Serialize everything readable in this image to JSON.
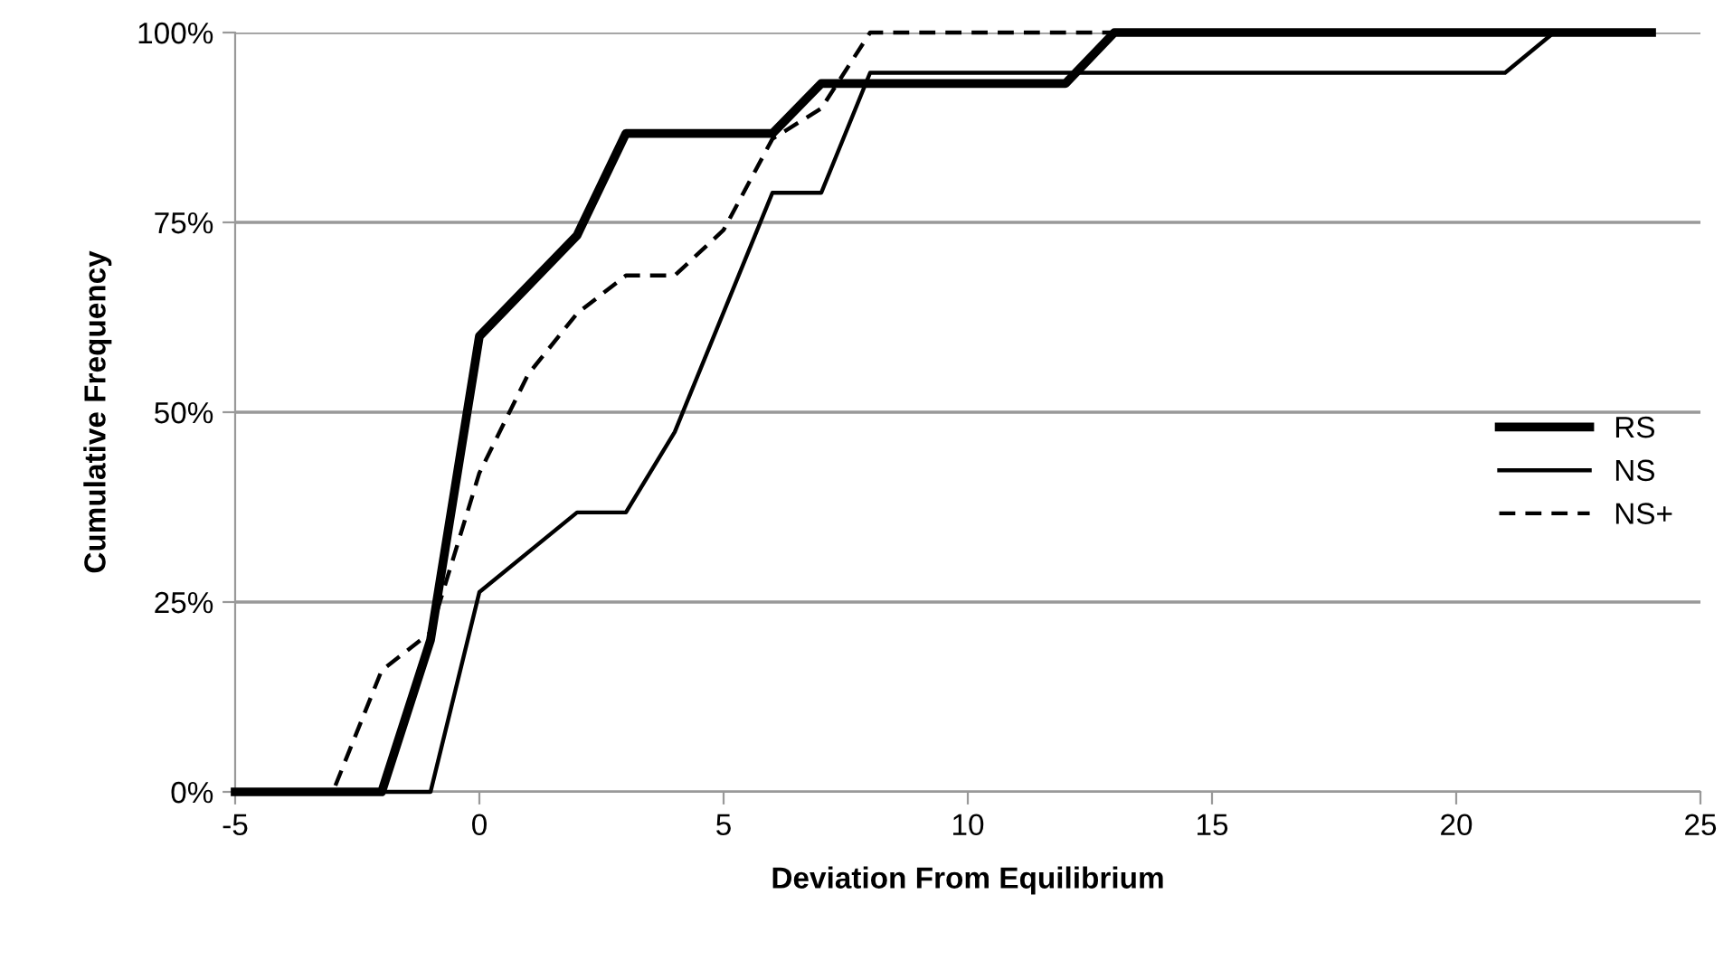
{
  "chart_data": {
    "type": "line",
    "xlabel": "Deviation From Equilibrium",
    "ylabel": "Cumulative Frequency",
    "xlim": [
      -5,
      25
    ],
    "xticks": [
      -5,
      0,
      5,
      10,
      15,
      20,
      25
    ],
    "ylim": [
      0,
      100
    ],
    "yticks": [
      {
        "value": 0,
        "label": "0%"
      },
      {
        "value": 25,
        "label": "25%"
      },
      {
        "value": 50,
        "label": "50%"
      },
      {
        "value": 75,
        "label": "75%"
      },
      {
        "value": 100,
        "label": "100%"
      }
    ],
    "grid": "y",
    "legend": "right",
    "marker": "none",
    "series": [
      {
        "name": "RS",
        "color": "#000000",
        "line_style": "solid",
        "x": [
          -5,
          -2,
          -1,
          0,
          2,
          3,
          6,
          7,
          12,
          13,
          24
        ],
        "values": [
          0,
          0,
          20,
          60,
          73.3,
          86.7,
          86.7,
          93.3,
          93.3,
          100,
          100
        ]
      },
      {
        "name": "NS",
        "color": "#000000",
        "line_style": "solid",
        "x": [
          -5,
          -1,
          0,
          2,
          3,
          4,
          6,
          7,
          8,
          21,
          22,
          24
        ],
        "values": [
          0,
          0,
          26.3,
          36.8,
          36.8,
          47.4,
          78.9,
          78.9,
          94.7,
          94.7,
          100,
          100
        ]
      },
      {
        "name": "NS+",
        "color": "#000000",
        "line_style": "dashed",
        "x": [
          -5,
          -3,
          -2,
          -1,
          0,
          1,
          2,
          3,
          4,
          5,
          6,
          7,
          8,
          24
        ],
        "values": [
          0,
          0,
          16,
          21,
          42,
          55,
          63,
          68,
          68,
          74,
          86,
          90,
          100,
          100
        ]
      }
    ]
  }
}
